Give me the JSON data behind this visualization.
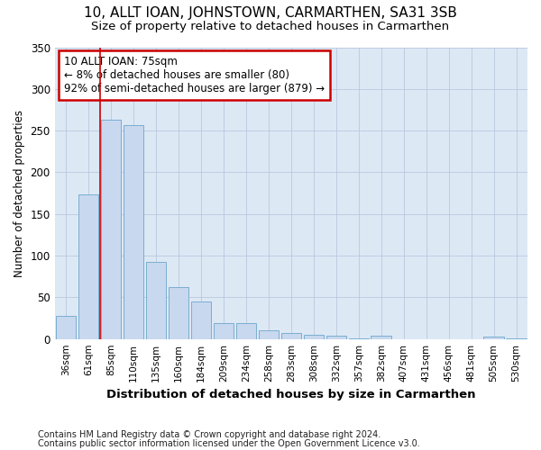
{
  "title1": "10, ALLT IOAN, JOHNSTOWN, CARMARTHEN, SA31 3SB",
  "title2": "Size of property relative to detached houses in Carmarthen",
  "xlabel": "Distribution of detached houses by size in Carmarthen",
  "ylabel": "Number of detached properties",
  "footnote1": "Contains HM Land Registry data © Crown copyright and database right 2024.",
  "footnote2": "Contains public sector information licensed under the Open Government Licence v3.0.",
  "categories": [
    "36sqm",
    "61sqm",
    "85sqm",
    "110sqm",
    "135sqm",
    "160sqm",
    "184sqm",
    "209sqm",
    "234sqm",
    "258sqm",
    "283sqm",
    "308sqm",
    "332sqm",
    "357sqm",
    "382sqm",
    "407sqm",
    "431sqm",
    "456sqm",
    "481sqm",
    "505sqm",
    "530sqm"
  ],
  "values": [
    28,
    174,
    263,
    257,
    93,
    62,
    45,
    19,
    19,
    10,
    7,
    5,
    4,
    1,
    4,
    0,
    0,
    0,
    0,
    3,
    1
  ],
  "bar_color": "#c8d8ee",
  "bar_edge_color": "#7aaed0",
  "fig_bg_color": "#ffffff",
  "plot_bg_color": "#dde8f5",
  "red_line_x": 1.5,
  "annotation_text": "10 ALLT IOAN: 75sqm\n← 8% of detached houses are smaller (80)\n92% of semi-detached houses are larger (879) →",
  "annotation_box_color": "#ffffff",
  "annotation_box_edge": "#cc0000",
  "ylim": [
    0,
    350
  ],
  "yticks": [
    0,
    50,
    100,
    150,
    200,
    250,
    300,
    350
  ]
}
